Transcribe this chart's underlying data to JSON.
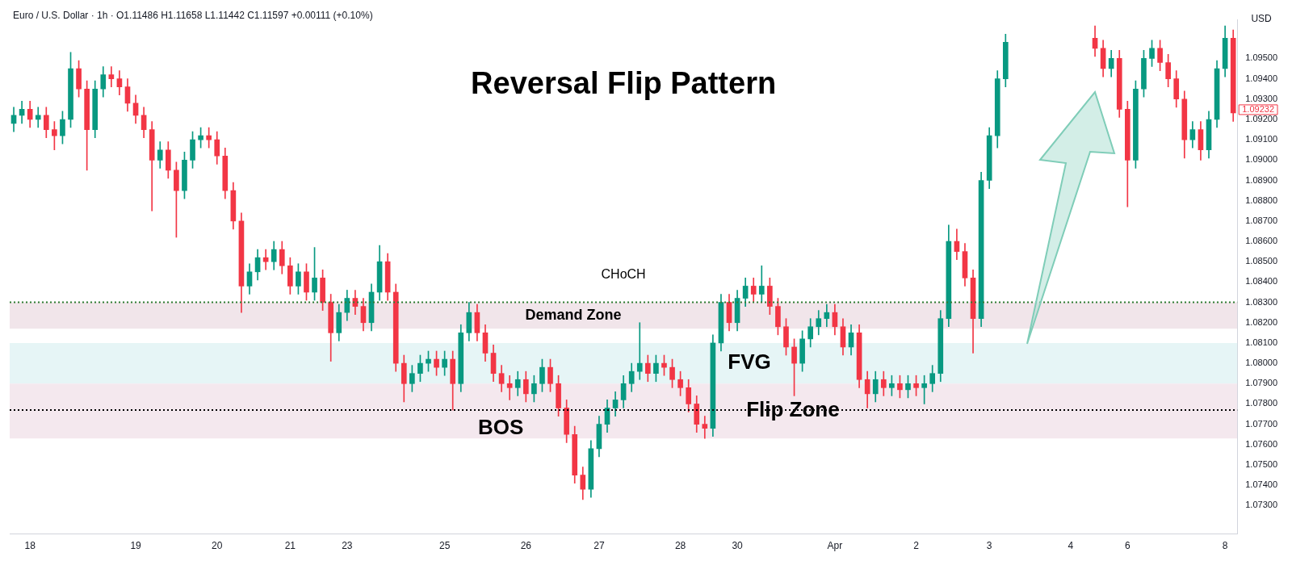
{
  "chart_data": {
    "type": "candlestick",
    "title": "Reversal Flip Pattern",
    "subtitle": "Euro / U.S. Dollar · 1h · O1.11486 H1.11658 L1.11442 C1.11597 +0.00111 (+0.10%)",
    "ylabel": "USD",
    "categories": [
      null,
      null,
      "18",
      null,
      null,
      null,
      null,
      null,
      null,
      null,
      null,
      null,
      null,
      null,
      null,
      "19",
      null,
      null,
      null,
      null,
      null,
      null,
      null,
      null,
      null,
      "20",
      null,
      null,
      null,
      null,
      null,
      null,
      null,
      null,
      "21",
      null,
      null,
      null,
      null,
      null,
      null,
      "23",
      null,
      null,
      null,
      null,
      null,
      null,
      null,
      null,
      null,
      null,
      null,
      "25",
      null,
      null,
      null,
      null,
      null,
      null,
      null,
      null,
      null,
      "26",
      null,
      null,
      null,
      null,
      null,
      null,
      null,
      null,
      "27",
      null,
      null,
      null,
      null,
      null,
      null,
      null,
      null,
      null,
      "28",
      null,
      null,
      null,
      null,
      null,
      null,
      "30",
      null,
      null,
      null,
      null,
      null,
      null,
      null,
      null,
      null,
      null,
      null,
      "Apr",
      null,
      null,
      null,
      null,
      null,
      null,
      null,
      null,
      null,
      "2",
      null,
      null,
      null,
      null,
      null,
      null,
      null,
      null,
      "3",
      null,
      null,
      null,
      null,
      null,
      null,
      null,
      null,
      null,
      "4",
      null,
      null,
      null,
      null,
      null,
      null,
      "6",
      null,
      null,
      null,
      null,
      null,
      null,
      null,
      null,
      null,
      null,
      null,
      "8",
      null
    ],
    "ohlc": [
      [
        1.0918,
        1.0926,
        1.0914,
        1.0922
      ],
      [
        1.0922,
        1.0929,
        1.0918,
        1.0925
      ],
      [
        1.0925,
        1.0929,
        1.0916,
        1.092
      ],
      [
        1.092,
        1.0926,
        1.0916,
        1.0922
      ],
      [
        1.0922,
        1.0926,
        1.0911,
        1.0915
      ],
      [
        1.0915,
        1.0919,
        1.0905,
        1.0912
      ],
      [
        1.0912,
        1.0924,
        1.0908,
        1.092
      ],
      [
        1.092,
        1.0953,
        1.0916,
        1.0945
      ],
      [
        1.0945,
        1.0949,
        1.0931,
        1.0935
      ],
      [
        1.0935,
        1.0939,
        1.0895,
        1.0915
      ],
      [
        1.0915,
        1.0939,
        1.0911,
        1.0935
      ],
      [
        1.0935,
        1.0946,
        1.0931,
        1.0942
      ],
      [
        1.0942,
        1.0946,
        1.0936,
        1.094
      ],
      [
        1.094,
        1.0944,
        1.0932,
        1.0936
      ],
      [
        1.0936,
        1.094,
        1.0924,
        1.0928
      ],
      [
        1.0928,
        1.0932,
        1.0918,
        1.0922
      ],
      [
        1.0922,
        1.0926,
        1.0911,
        1.0915
      ],
      [
        1.0915,
        1.0919,
        1.0875,
        1.09
      ],
      [
        1.09,
        1.0909,
        1.0896,
        1.0905
      ],
      [
        1.0905,
        1.0909,
        1.0891,
        1.0895
      ],
      [
        1.0895,
        1.0899,
        1.0862,
        1.0885
      ],
      [
        1.0885,
        1.0904,
        1.0881,
        1.09
      ],
      [
        1.09,
        1.0914,
        1.0896,
        1.091
      ],
      [
        1.091,
        1.0916,
        1.0906,
        1.0912
      ],
      [
        1.0912,
        1.0916,
        1.0906,
        1.091
      ],
      [
        1.091,
        1.0914,
        1.0898,
        1.0902
      ],
      [
        1.0902,
        1.0906,
        1.0881,
        1.0885
      ],
      [
        1.0885,
        1.0889,
        1.0866,
        1.087
      ],
      [
        1.087,
        1.0874,
        1.0825,
        1.0838
      ],
      [
        1.0838,
        1.0849,
        1.0834,
        1.0845
      ],
      [
        1.0845,
        1.0856,
        1.0841,
        1.0852
      ],
      [
        1.0852,
        1.0856,
        1.0846,
        1.085
      ],
      [
        1.085,
        1.086,
        1.0846,
        1.0856
      ],
      [
        1.0856,
        1.086,
        1.0844,
        1.0848
      ],
      [
        1.0848,
        1.0852,
        1.0834,
        1.0838
      ],
      [
        1.0838,
        1.0849,
        1.0834,
        1.0845
      ],
      [
        1.0845,
        1.0849,
        1.0831,
        1.0835
      ],
      [
        1.0835,
        1.0857,
        1.0831,
        1.0842
      ],
      [
        1.0842,
        1.0846,
        1.0826,
        1.083
      ],
      [
        1.083,
        1.0834,
        1.0801,
        1.0815
      ],
      [
        1.0815,
        1.0829,
        1.0811,
        1.0825
      ],
      [
        1.0825,
        1.0836,
        1.0821,
        1.0832
      ],
      [
        1.0832,
        1.0836,
        1.0824,
        1.0828
      ],
      [
        1.0828,
        1.0832,
        1.0816,
        1.082
      ],
      [
        1.082,
        1.0839,
        1.0816,
        1.0835
      ],
      [
        1.0835,
        1.0858,
        1.0831,
        1.085
      ],
      [
        1.085,
        1.0854,
        1.0831,
        1.0835
      ],
      [
        1.0835,
        1.0839,
        1.0796,
        1.08
      ],
      [
        1.08,
        1.0804,
        1.0781,
        1.079
      ],
      [
        1.079,
        1.0799,
        1.0786,
        1.0795
      ],
      [
        1.0795,
        1.0804,
        1.0791,
        1.08
      ],
      [
        1.08,
        1.0806,
        1.0796,
        1.0802
      ],
      [
        1.0802,
        1.0806,
        1.0794,
        1.0798
      ],
      [
        1.0798,
        1.0806,
        1.0794,
        1.0802
      ],
      [
        1.0802,
        1.0806,
        1.0777,
        1.079
      ],
      [
        1.079,
        1.0819,
        1.0786,
        1.0815
      ],
      [
        1.0815,
        1.083,
        1.0811,
        1.0825
      ],
      [
        1.0825,
        1.0829,
        1.0811,
        1.0815
      ],
      [
        1.0815,
        1.0819,
        1.0801,
        1.0805
      ],
      [
        1.0805,
        1.0809,
        1.0791,
        1.0795
      ],
      [
        1.0795,
        1.0799,
        1.0786,
        1.079
      ],
      [
        1.079,
        1.0794,
        1.0782,
        1.0788
      ],
      [
        1.0788,
        1.0796,
        1.0784,
        1.0792
      ],
      [
        1.0792,
        1.0796,
        1.0781,
        1.0785
      ],
      [
        1.0785,
        1.0794,
        1.0781,
        1.079
      ],
      [
        1.079,
        1.0802,
        1.0786,
        1.0798
      ],
      [
        1.0798,
        1.0802,
        1.0786,
        1.079
      ],
      [
        1.079,
        1.0794,
        1.0774,
        1.0778
      ],
      [
        1.0778,
        1.0782,
        1.0761,
        1.0765
      ],
      [
        1.0765,
        1.0769,
        1.0741,
        1.0745
      ],
      [
        1.0745,
        1.0749,
        1.0733,
        1.0738
      ],
      [
        1.0738,
        1.0762,
        1.0734,
        1.0758
      ],
      [
        1.0758,
        1.0774,
        1.0754,
        1.077
      ],
      [
        1.077,
        1.0782,
        1.0766,
        1.0778
      ],
      [
        1.0778,
        1.0786,
        1.0774,
        1.0782
      ],
      [
        1.0782,
        1.0794,
        1.0778,
        1.079
      ],
      [
        1.079,
        1.08,
        1.0786,
        1.0796
      ],
      [
        1.0796,
        1.082,
        1.0792,
        1.08
      ],
      [
        1.08,
        1.0804,
        1.0791,
        1.0795
      ],
      [
        1.0795,
        1.0804,
        1.0791,
        1.08
      ],
      [
        1.08,
        1.0804,
        1.0794,
        1.0798
      ],
      [
        1.0798,
        1.0802,
        1.0788,
        1.0792
      ],
      [
        1.0792,
        1.0796,
        1.0784,
        1.0788
      ],
      [
        1.0788,
        1.0792,
        1.0776,
        1.078
      ],
      [
        1.078,
        1.0784,
        1.0766,
        1.077
      ],
      [
        1.077,
        1.0774,
        1.0763,
        1.0768
      ],
      [
        1.0768,
        1.0814,
        1.0764,
        1.081
      ],
      [
        1.081,
        1.0834,
        1.0806,
        1.083
      ],
      [
        1.083,
        1.0834,
        1.0816,
        1.082
      ],
      [
        1.082,
        1.0836,
        1.0816,
        1.0832
      ],
      [
        1.0832,
        1.0842,
        1.0828,
        1.0838
      ],
      [
        1.0838,
        1.0842,
        1.083,
        1.0834
      ],
      [
        1.0834,
        1.0848,
        1.083,
        1.0838
      ],
      [
        1.0838,
        1.0842,
        1.0824,
        1.0828
      ],
      [
        1.0828,
        1.0832,
        1.0814,
        1.0818
      ],
      [
        1.0818,
        1.0822,
        1.0804,
        1.0808
      ],
      [
        1.0808,
        1.0812,
        1.0784,
        1.08
      ],
      [
        1.08,
        1.0816,
        1.0796,
        1.0812
      ],
      [
        1.0812,
        1.0822,
        1.0808,
        1.0818
      ],
      [
        1.0818,
        1.0826,
        1.0814,
        1.0822
      ],
      [
        1.0822,
        1.0829,
        1.0818,
        1.0825
      ],
      [
        1.0825,
        1.0829,
        1.0814,
        1.0818
      ],
      [
        1.0818,
        1.0822,
        1.0804,
        1.0808
      ],
      [
        1.0808,
        1.0819,
        1.0804,
        1.0815
      ],
      [
        1.0815,
        1.0819,
        1.0788,
        1.0792
      ],
      [
        1.0792,
        1.0796,
        1.0778,
        1.0785
      ],
      [
        1.0785,
        1.0796,
        1.0781,
        1.0792
      ],
      [
        1.0792,
        1.0796,
        1.0784,
        1.0788
      ],
      [
        1.0788,
        1.0794,
        1.0784,
        1.079
      ],
      [
        1.079,
        1.0794,
        1.0783,
        1.0787
      ],
      [
        1.0787,
        1.0794,
        1.0783,
        1.079
      ],
      [
        1.079,
        1.0794,
        1.0784,
        1.0788
      ],
      [
        1.0788,
        1.0794,
        1.078,
        1.079
      ],
      [
        1.079,
        1.0799,
        1.0786,
        1.0795
      ],
      [
        1.0795,
        1.0826,
        1.0791,
        1.0822
      ],
      [
        1.0822,
        1.0868,
        1.0818,
        1.086
      ],
      [
        1.086,
        1.0866,
        1.0851,
        1.0855
      ],
      [
        1.0855,
        1.0859,
        1.0838,
        1.0842
      ],
      [
        1.0842,
        1.0846,
        1.0805,
        1.0822
      ],
      [
        1.0822,
        1.0894,
        1.0818,
        1.089
      ],
      [
        1.089,
        1.0916,
        1.0886,
        1.0912
      ],
      [
        1.0912,
        1.0944,
        1.0906,
        1.094
      ],
      [
        1.094,
        1.0962,
        1.0936,
        1.0958
      ],
      null,
      null,
      null,
      null,
      null,
      null,
      null,
      null,
      null,
      null,
      [
        1.096,
        1.0966,
        1.0951,
        1.0955
      ],
      [
        1.0955,
        1.0959,
        1.0941,
        1.0945
      ],
      [
        1.0945,
        1.0954,
        1.0941,
        1.095
      ],
      [
        1.095,
        1.0954,
        1.0921,
        1.0925
      ],
      [
        1.0925,
        1.0929,
        1.0877,
        1.09
      ],
      [
        1.09,
        1.0939,
        1.0896,
        1.0935
      ],
      [
        1.0935,
        1.0954,
        1.0931,
        1.095
      ],
      [
        1.095,
        1.0959,
        1.0946,
        1.0955
      ],
      [
        1.0955,
        1.0959,
        1.0944,
        1.0948
      ],
      [
        1.0948,
        1.0952,
        1.0936,
        1.094
      ],
      [
        1.094,
        1.0944,
        1.0926,
        1.093
      ],
      [
        1.093,
        1.0934,
        1.0901,
        1.091
      ],
      [
        1.091,
        1.0919,
        1.0906,
        1.0915
      ],
      [
        1.0915,
        1.0919,
        1.09,
        1.0905
      ],
      [
        1.0905,
        1.0924,
        1.0901,
        1.092
      ],
      [
        1.092,
        1.0949,
        1.0916,
        1.0945
      ],
      [
        1.0945,
        1.0966,
        1.0941,
        1.096
      ],
      [
        1.096,
        1.0964,
        1.0919,
        1.09232
      ]
    ],
    "colors": [
      "#089981",
      "#089981",
      "#f23645",
      "#089981",
      "#f23645",
      "#f23645",
      "#089981",
      "#089981",
      "#f23645",
      "#f23645",
      "#089981",
      "#089981",
      "#f23645",
      "#f23645",
      "#f23645",
      "#f23645",
      "#f23645",
      "#f23645",
      "#089981",
      "#f23645",
      "#f23645",
      "#089981",
      "#089981",
      "#089981",
      "#f23645",
      "#f23645",
      "#f23645",
      "#f23645",
      "#f23645",
      "#089981",
      "#089981",
      "#f23645",
      "#089981",
      "#f23645",
      "#f23645",
      "#089981",
      "#f23645",
      "#089981",
      "#f23645",
      "#f23645",
      "#089981",
      "#089981",
      "#f23645",
      "#f23645",
      "#089981",
      "#089981",
      "#f23645",
      "#f23645",
      "#f23645",
      "#089981",
      "#089981",
      "#089981",
      "#f23645",
      "#089981",
      "#f23645",
      "#089981",
      "#089981",
      "#f23645",
      "#f23645",
      "#f23645",
      "#f23645",
      "#f23645",
      "#089981",
      "#f23645",
      "#089981",
      "#089981",
      "#f23645",
      "#f23645",
      "#f23645",
      "#f23645",
      "#f23645",
      "#089981",
      "#089981",
      "#089981",
      "#089981",
      "#089981",
      "#089981",
      "#089981",
      "#f23645",
      "#089981",
      "#f23645",
      "#f23645",
      "#f23645",
      "#f23645",
      "#f23645",
      "#f23645",
      "#089981",
      "#089981",
      "#f23645",
      "#089981",
      "#089981",
      "#f23645",
      "#089981",
      "#f23645",
      "#f23645",
      "#f23645",
      "#f23645",
      "#089981",
      "#089981",
      "#089981",
      "#089981",
      "#f23645",
      "#f23645",
      "#089981",
      "#f23645",
      "#f23645",
      "#089981",
      "#f23645",
      "#089981",
      "#f23645",
      "#089981",
      "#f23645",
      "#089981",
      "#089981",
      "#089981",
      "#089981",
      "#f23645",
      "#f23645",
      "#f23645",
      "#089981",
      "#089981",
      "#089981",
      "#089981",
      null,
      null,
      null,
      null,
      null,
      null,
      null,
      null,
      null,
      null,
      "#f23645",
      "#f23645",
      "#089981",
      "#f23645",
      "#f23645",
      "#089981",
      "#089981",
      "#089981",
      "#f23645",
      "#f23645",
      "#f23645",
      "#f23645",
      "#089981",
      "#f23645",
      "#089981",
      "#089981",
      "#089981",
      "#f23645"
    ],
    "ylim": [
      1.0716,
      1.0969
    ],
    "yticks": [
      {
        "value": 1.073,
        "label": "1.07300"
      },
      {
        "value": 1.074,
        "label": "1.07400"
      },
      {
        "value": 1.075,
        "label": "1.07500"
      },
      {
        "value": 1.076,
        "label": "1.07600"
      },
      {
        "value": 1.077,
        "label": "1.07700"
      },
      {
        "value": 1.078,
        "label": "1.07800"
      },
      {
        "value": 1.079,
        "label": "1.07900"
      },
      {
        "value": 1.08,
        "label": "1.08000"
      },
      {
        "value": 1.081,
        "label": "1.08100"
      },
      {
        "value": 1.082,
        "label": "1.08200"
      },
      {
        "value": 1.083,
        "label": "1.08300"
      },
      {
        "value": 1.084,
        "label": "1.08400"
      },
      {
        "value": 1.085,
        "label": "1.08500"
      },
      {
        "value": 1.086,
        "label": "1.08600"
      },
      {
        "value": 1.087,
        "label": "1.08700"
      },
      {
        "value": 1.088,
        "label": "1.08800"
      },
      {
        "value": 1.089,
        "label": "1.08900"
      },
      {
        "value": 1.09,
        "label": "1.09000"
      },
      {
        "value": 1.091,
        "label": "1.09100"
      },
      {
        "value": 1.092,
        "label": "1.09200"
      },
      {
        "value": 1.093,
        "label": "1.09300"
      },
      {
        "value": 1.094,
        "label": "1.09400"
      },
      {
        "value": 1.095,
        "label": "1.09500"
      }
    ],
    "bands": [
      {
        "axis": "y",
        "from": 1.0817,
        "to": 1.083,
        "label": "Demand Zone",
        "color": "#e8d3dc"
      },
      {
        "axis": "y",
        "from": 1.079,
        "to": 1.081,
        "label": "FVG",
        "color": "#d6eef0"
      },
      {
        "axis": "y",
        "from": 1.0763,
        "to": 1.079,
        "label": "Flip Zone",
        "color": "#ecd9e3"
      }
    ],
    "ref_lines": [
      {
        "axis": "y",
        "value": 1.083,
        "label": "CHoCH",
        "color": "#2e7d32",
        "line_style": "dotted"
      },
      {
        "axis": "y",
        "value": 1.0777,
        "label": "BOS",
        "color": "#000000",
        "line_style": "dotted"
      }
    ],
    "annotations": [
      "1.09232"
    ],
    "grid": false,
    "legend": false
  }
}
